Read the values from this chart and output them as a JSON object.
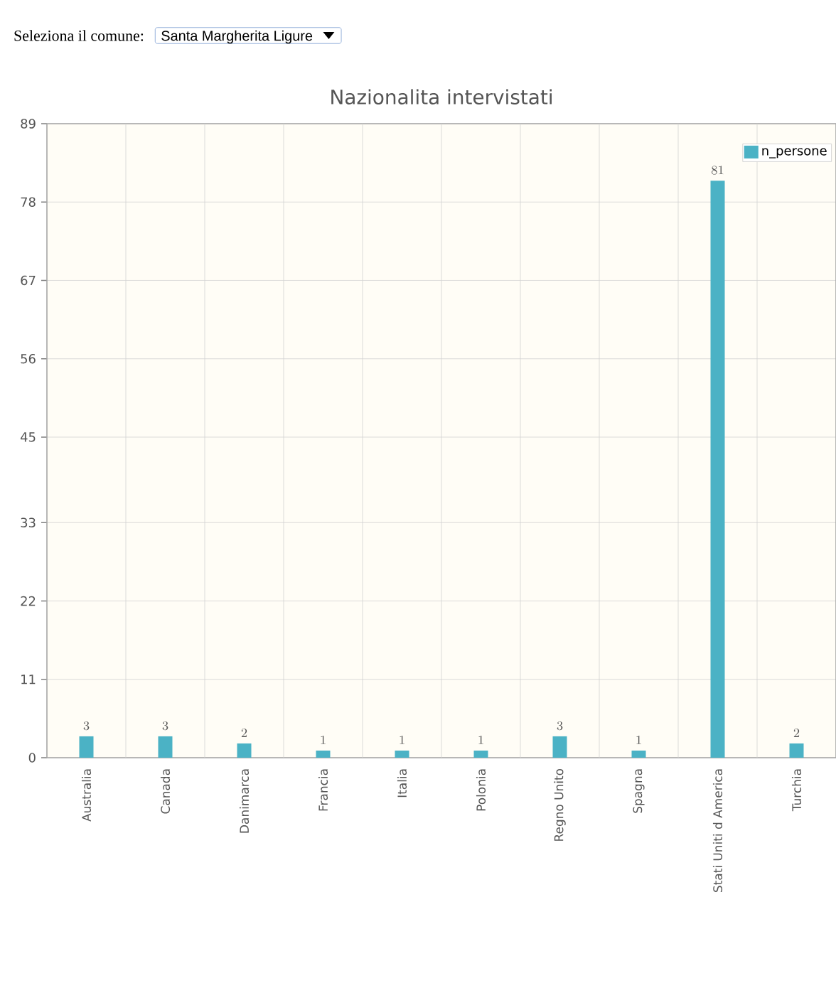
{
  "chart_data": {
    "type": "bar",
    "title": "Nazionalita intervistati",
    "annotations": [
      "Seleziona il comune:",
      "Santa Margherita Ligure"
    ],
    "categories": [
      "Australia",
      "Canada",
      "Danimarca",
      "Francia",
      "Italia",
      "Polonia",
      "Regno Unito",
      "Spagna",
      "Stati Uniti d America",
      "Turchia"
    ],
    "series": [
      {
        "name": "n_persone",
        "color": "#4bb2c5",
        "values": [
          3,
          3,
          2,
          1,
          1,
          1,
          3,
          1,
          81,
          2
        ]
      }
    ],
    "ylim": [
      0,
      89
    ],
    "yticks": [
      0,
      11,
      22,
      33,
      45,
      56,
      67,
      78,
      89
    ],
    "grid": true,
    "legend": "top right",
    "data_labels": true
  }
}
